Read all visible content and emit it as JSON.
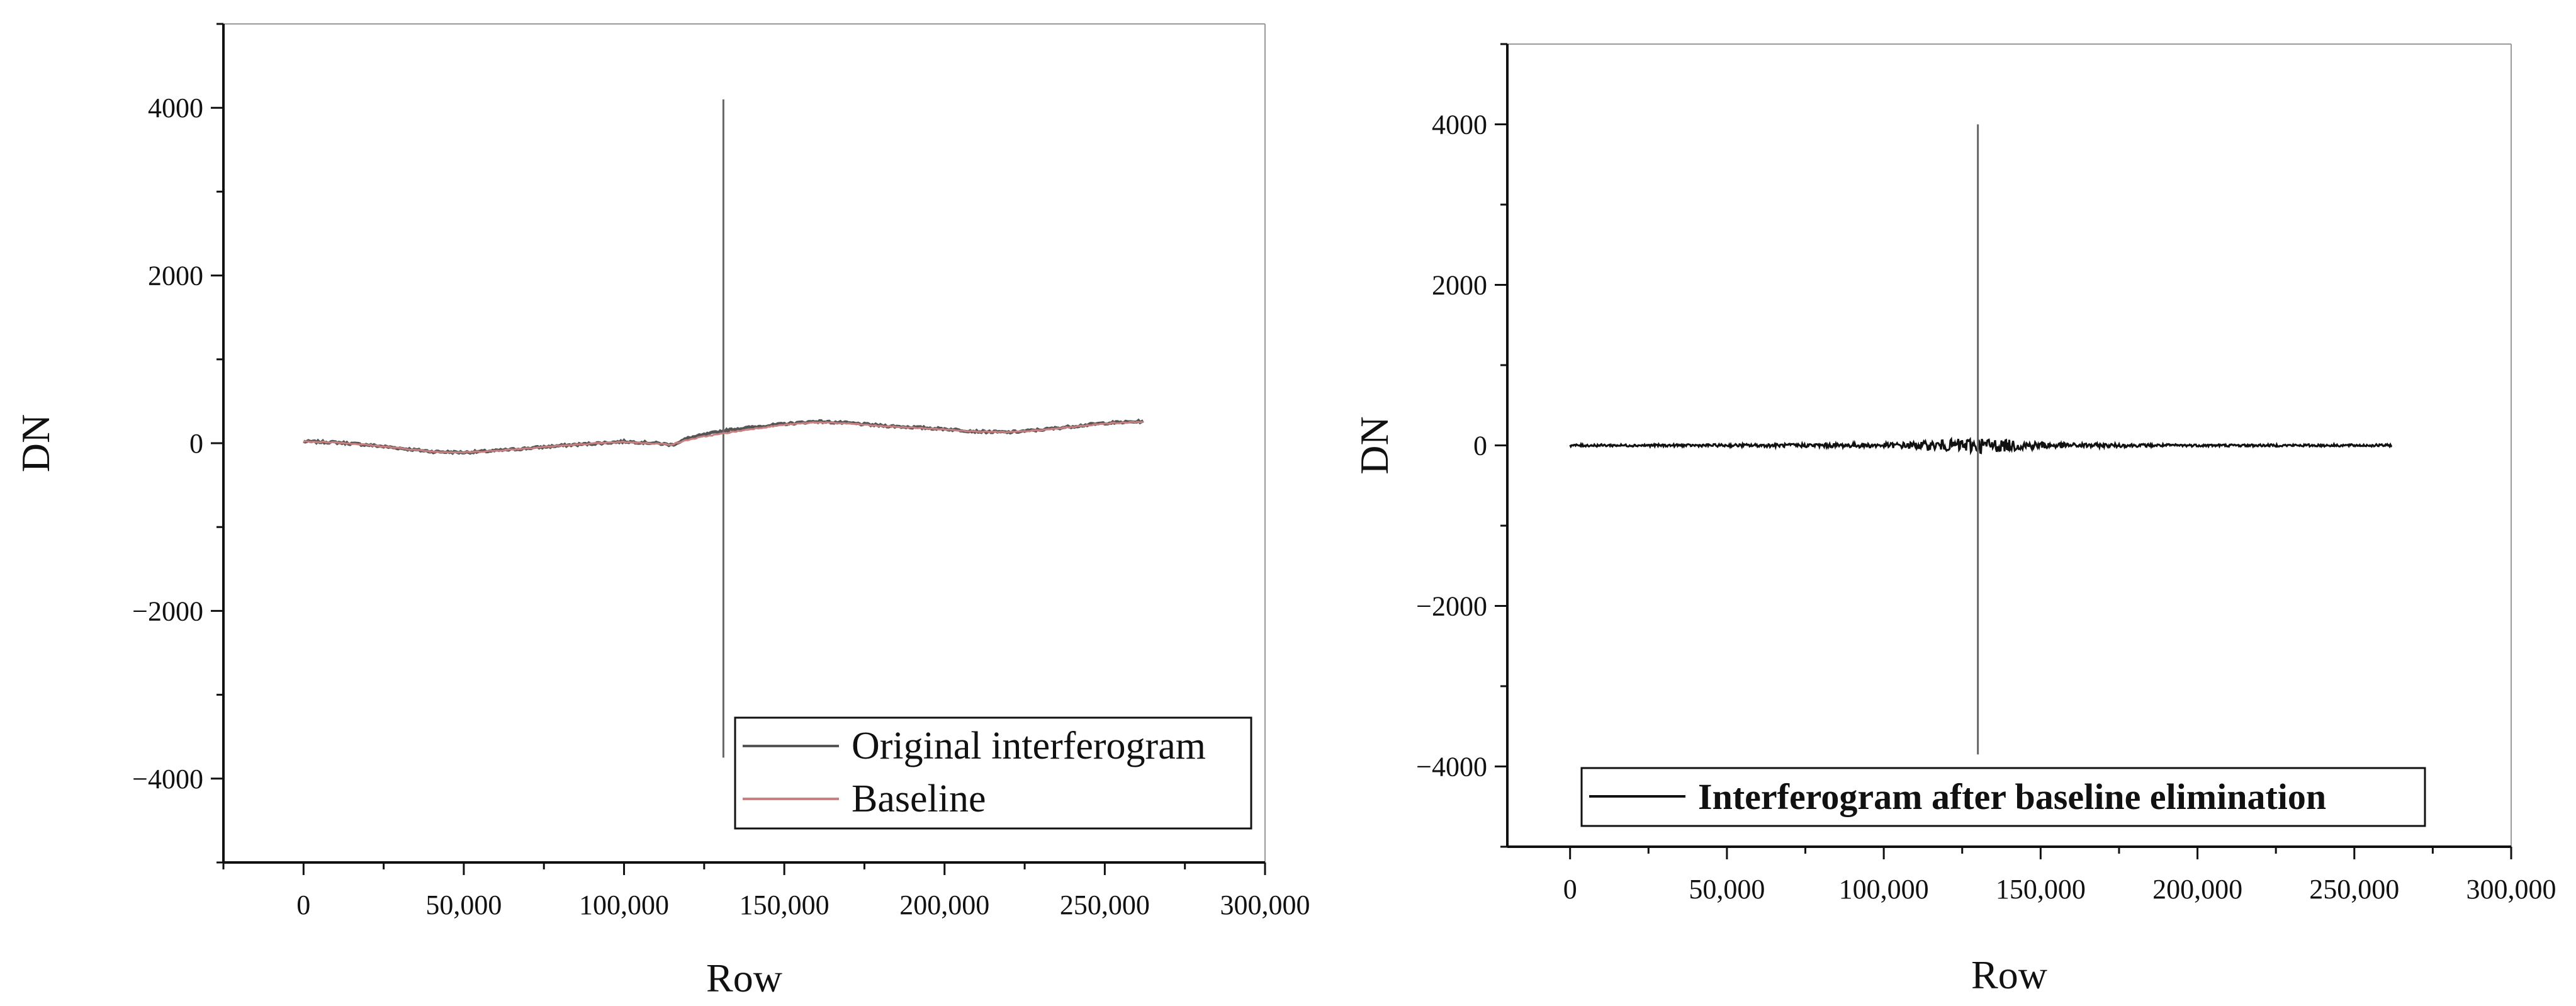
{
  "chart_data": [
    {
      "type": "line",
      "xlabel": "Row",
      "ylabel": "DN",
      "xlim": [
        -25000,
        300000
      ],
      "ylim": [
        -5000,
        5000
      ],
      "xticks": [
        0,
        50000,
        100000,
        150000,
        200000,
        250000,
        300000
      ],
      "xtick_labels": [
        "0",
        "50,000",
        "100,000",
        "150,000",
        "200,000",
        "250,000",
        "300,000"
      ],
      "yticks": [
        -4000,
        -2000,
        0,
        2000,
        4000
      ],
      "ytick_labels": [
        "−4000",
        "−2000",
        "0",
        "2000",
        "4000"
      ],
      "grid": false,
      "legend_position": "bottom-right",
      "series": [
        {
          "name": "Original interferogram",
          "color": "#555555",
          "x": [
            0,
            10000,
            20000,
            30000,
            40000,
            50000,
            60000,
            70000,
            80000,
            90000,
            100000,
            110000,
            115000,
            120000,
            125000,
            130000,
            135000,
            140000,
            150000,
            160000,
            170000,
            180000,
            190000,
            200000,
            210000,
            220000,
            230000,
            240000,
            250000,
            262000
          ],
          "y": [
            20,
            10,
            -20,
            -60,
            -100,
            -110,
            -90,
            -60,
            -30,
            -5,
            20,
            0,
            -20,
            60,
            100,
            140,
            170,
            190,
            230,
            260,
            240,
            210,
            190,
            170,
            140,
            130,
            160,
            200,
            240,
            260
          ],
          "peak": {
            "x": 131000,
            "ymax": 4100,
            "ymin": -3750
          }
        },
        {
          "name": "Baseline",
          "color": "#c98080",
          "x": [
            0,
            10000,
            20000,
            30000,
            40000,
            50000,
            60000,
            70000,
            80000,
            90000,
            100000,
            110000,
            115000,
            120000,
            125000,
            130000,
            135000,
            140000,
            150000,
            160000,
            170000,
            180000,
            190000,
            200000,
            210000,
            220000,
            230000,
            240000,
            250000,
            262000
          ],
          "y": [
            20,
            10,
            -20,
            -60,
            -100,
            -110,
            -90,
            -60,
            -30,
            -5,
            15,
            -5,
            -15,
            40,
            80,
            110,
            140,
            170,
            220,
            250,
            235,
            205,
            185,
            165,
            140,
            130,
            155,
            195,
            235,
            255
          ]
        }
      ]
    },
    {
      "type": "line",
      "xlabel": "Row",
      "ylabel": "DN",
      "xlim": [
        -20000,
        300000
      ],
      "ylim": [
        -5000,
        5000
      ],
      "xticks": [
        0,
        50000,
        100000,
        150000,
        200000,
        250000,
        300000
      ],
      "xtick_labels": [
        "0",
        "50,000",
        "100,000",
        "150,000",
        "200,000",
        "250,000",
        "300,000"
      ],
      "yticks": [
        -4000,
        -2000,
        0,
        2000,
        4000
      ],
      "ytick_labels": [
        "−4000",
        "−2000",
        "0",
        "2000",
        "4000"
      ],
      "grid": false,
      "legend_position": "bottom",
      "series": [
        {
          "name": "Interferogram after baseline elimination",
          "color": "#111111",
          "x": [
            0,
            20000,
            40000,
            60000,
            80000,
            100000,
            110000,
            120000,
            125000,
            130000,
            135000,
            140000,
            150000,
            160000,
            180000,
            200000,
            220000,
            240000,
            262000
          ],
          "y": [
            0,
            0,
            0,
            0,
            0,
            0,
            0,
            0,
            0,
            0,
            0,
            0,
            0,
            0,
            0,
            0,
            0,
            0,
            0
          ],
          "noise_amplitude": [
            15,
            15,
            15,
            20,
            25,
            30,
            45,
            70,
            90,
            100,
            90,
            70,
            45,
            30,
            20,
            15,
            15,
            15,
            15
          ],
          "peak": {
            "x": 130000,
            "ymax": 4000,
            "ymin": -3850
          }
        }
      ]
    }
  ]
}
